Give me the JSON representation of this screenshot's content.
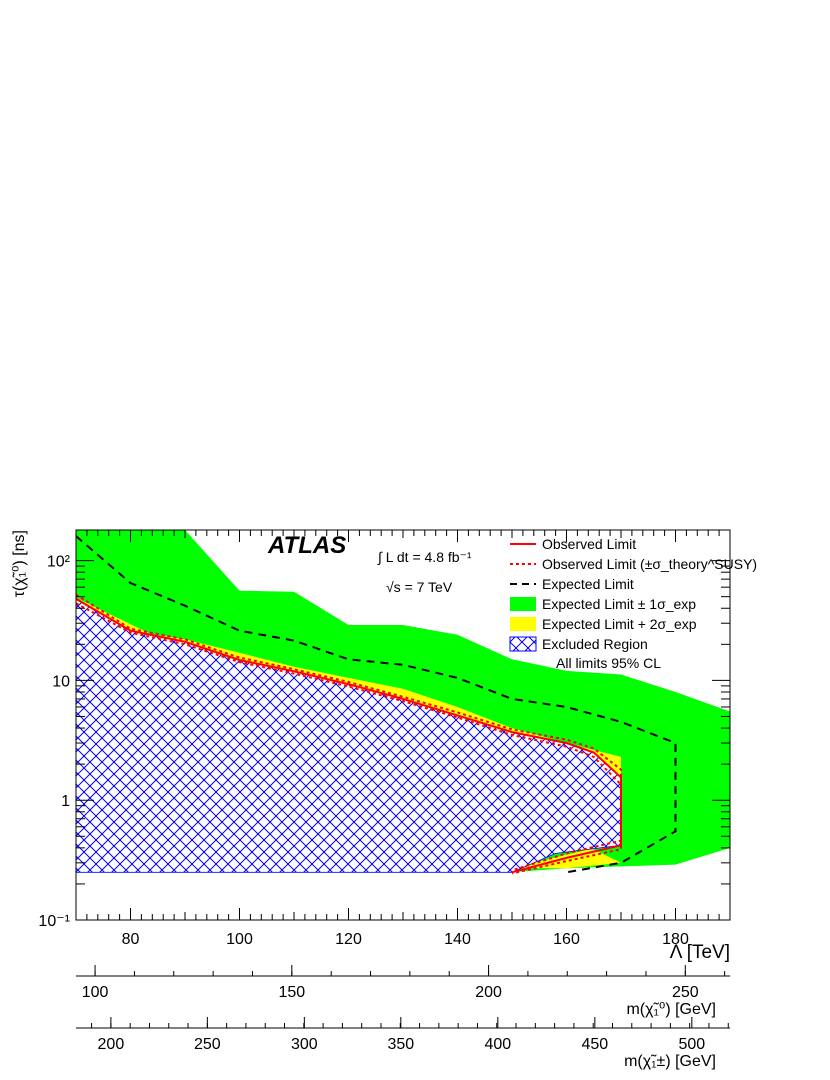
{
  "chart_data": {
    "type": "area",
    "x_axis": {
      "label": "Λ [TeV]",
      "range": [
        70,
        190
      ],
      "ticks": [
        "80",
        "100",
        "120",
        "140",
        "160",
        "180"
      ]
    },
    "y_axis": {
      "label": "τ(χ̃₁⁰) [ns]",
      "scale": "log",
      "range": [
        0.1,
        180
      ],
      "ticks": [
        "10⁻¹",
        "1",
        "10",
        "10²"
      ]
    },
    "secondary_axes": [
      {
        "label": "m(χ̃₁⁰) [GeV]",
        "ticks": [
          {
            "label": "100",
            "lambda": 73.5
          },
          {
            "label": "150",
            "lambda": 109.6
          },
          {
            "label": "200",
            "lambda": 145.7
          },
          {
            "label": "250",
            "lambda": 181.8
          }
        ]
      },
      {
        "label": "m(χ̃₁±) [GeV]",
        "ticks": [
          {
            "label": "200",
            "lambda": 76.4
          },
          {
            "label": "250",
            "lambda": 94.1
          },
          {
            "label": "300",
            "lambda": 111.9
          },
          {
            "label": "350",
            "lambda": 129.6
          },
          {
            "label": "400",
            "lambda": 147.4
          },
          {
            "label": "450",
            "lambda": 165.2
          },
          {
            "label": "500",
            "lambda": 183.0
          }
        ]
      }
    ],
    "annotations": {
      "experiment": "ATLAS",
      "luminosity": "∫ L dt = 4.8 fb⁻¹",
      "energy": "√s = 7 TeV",
      "cl": "All limits 95% CL"
    },
    "legend": {
      "placement": "top-right",
      "entries": [
        {
          "label": "Observed Limit",
          "style": "red-solid"
        },
        {
          "label": "Observed Limit (±σ_theory^SUSY)",
          "style": "red-dashed"
        },
        {
          "label": "Expected Limit",
          "style": "black-dashed"
        },
        {
          "label": "Expected Limit ± 1σ_exp",
          "style": "green-fill"
        },
        {
          "label": "Expected Limit + 2σ_exp",
          "style": "yellow-fill"
        },
        {
          "label": "Excluded Region",
          "style": "blue-hatch"
        }
      ]
    },
    "colors": {
      "observed": "#ff0000",
      "expected": "#000000",
      "band1": "#00ff00",
      "band2": "#ffff00",
      "hatch": "#0000ff"
    },
    "series": {
      "band1_lower": [
        [
          70,
          0.25
        ],
        [
          150,
          0.25
        ],
        [
          160,
          0.27
        ],
        [
          170,
          0.28
        ],
        [
          180,
          0.29
        ],
        [
          190,
          0.4
        ]
      ],
      "band1_upper": [
        [
          70,
          180
        ],
        [
          90,
          180
        ],
        [
          100,
          56
        ],
        [
          110,
          55
        ],
        [
          120,
          29
        ],
        [
          130,
          29
        ],
        [
          140,
          24
        ],
        [
          150,
          15
        ],
        [
          160,
          12
        ],
        [
          170,
          11.2
        ],
        [
          180,
          8
        ],
        [
          190,
          5.5
        ]
      ],
      "band2_region": [
        [
          70,
          49
        ],
        [
          80,
          26
        ],
        [
          90,
          22
        ],
        [
          100,
          17
        ],
        [
          110,
          13
        ],
        [
          120,
          10.5
        ],
        [
          130,
          8.5
        ],
        [
          140,
          6
        ],
        [
          150,
          4
        ],
        [
          160,
          3
        ],
        [
          170,
          2.3
        ],
        [
          170,
          0.45
        ],
        [
          160,
          0.35
        ],
        [
          150,
          0.27
        ],
        [
          160,
          0.27
        ],
        [
          170,
          0.3
        ]
      ],
      "excluded_region": [
        [
          70,
          0.25
        ],
        [
          150,
          0.25
        ],
        [
          158,
          0.36
        ],
        [
          170,
          0.42
        ],
        [
          170,
          1.55
        ],
        [
          165,
          2.5
        ],
        [
          160,
          3.0
        ],
        [
          150,
          3.7
        ],
        [
          140,
          5.1
        ],
        [
          130,
          7.0
        ],
        [
          120,
          9.3
        ],
        [
          110,
          11.9
        ],
        [
          100,
          14.8
        ],
        [
          90,
          21
        ],
        [
          80,
          26
        ],
        [
          70,
          48
        ]
      ],
      "observed": [
        [
          70,
          48
        ],
        [
          80,
          26
        ],
        [
          90,
          21
        ],
        [
          100,
          14.8
        ],
        [
          110,
          11.9
        ],
        [
          120,
          9.3
        ],
        [
          130,
          7.0
        ],
        [
          140,
          5.1
        ],
        [
          150,
          3.7
        ],
        [
          160,
          3.0
        ],
        [
          165,
          2.5
        ],
        [
          170,
          1.55
        ],
        [
          170,
          0.42
        ],
        [
          160,
          0.33
        ],
        [
          150,
          0.25
        ]
      ],
      "observed_plus": [
        [
          70,
          52
        ],
        [
          80,
          27
        ],
        [
          90,
          22
        ],
        [
          100,
          15.5
        ],
        [
          110,
          12.4
        ],
        [
          120,
          9.7
        ],
        [
          130,
          7.3
        ],
        [
          140,
          5.4
        ],
        [
          150,
          3.9
        ],
        [
          160,
          3.2
        ],
        [
          165,
          2.7
        ],
        [
          170,
          1.8
        ],
        [
          170,
          0.46
        ],
        [
          160,
          0.36
        ],
        [
          150,
          0.26
        ]
      ],
      "observed_minus": [
        [
          70,
          44
        ],
        [
          80,
          25
        ],
        [
          90,
          20
        ],
        [
          100,
          14.2
        ],
        [
          110,
          11.4
        ],
        [
          120,
          8.9
        ],
        [
          130,
          6.7
        ],
        [
          140,
          4.9
        ],
        [
          150,
          3.5
        ],
        [
          160,
          2.8
        ],
        [
          165,
          2.3
        ],
        [
          170,
          1.35
        ],
        [
          170,
          0.39
        ],
        [
          160,
          0.31
        ],
        [
          150,
          0.245
        ]
      ],
      "expected": [
        [
          70,
          160
        ],
        [
          80,
          65
        ],
        [
          90,
          42
        ],
        [
          100,
          26
        ],
        [
          110,
          21.5
        ],
        [
          120,
          15
        ],
        [
          130,
          13.5
        ],
        [
          140,
          10.5
        ],
        [
          150,
          7
        ],
        [
          160,
          6
        ],
        [
          170,
          4.5
        ],
        [
          180,
          3
        ],
        [
          180,
          0.55
        ],
        [
          170,
          0.3
        ],
        [
          160,
          0.25
        ]
      ]
    }
  }
}
